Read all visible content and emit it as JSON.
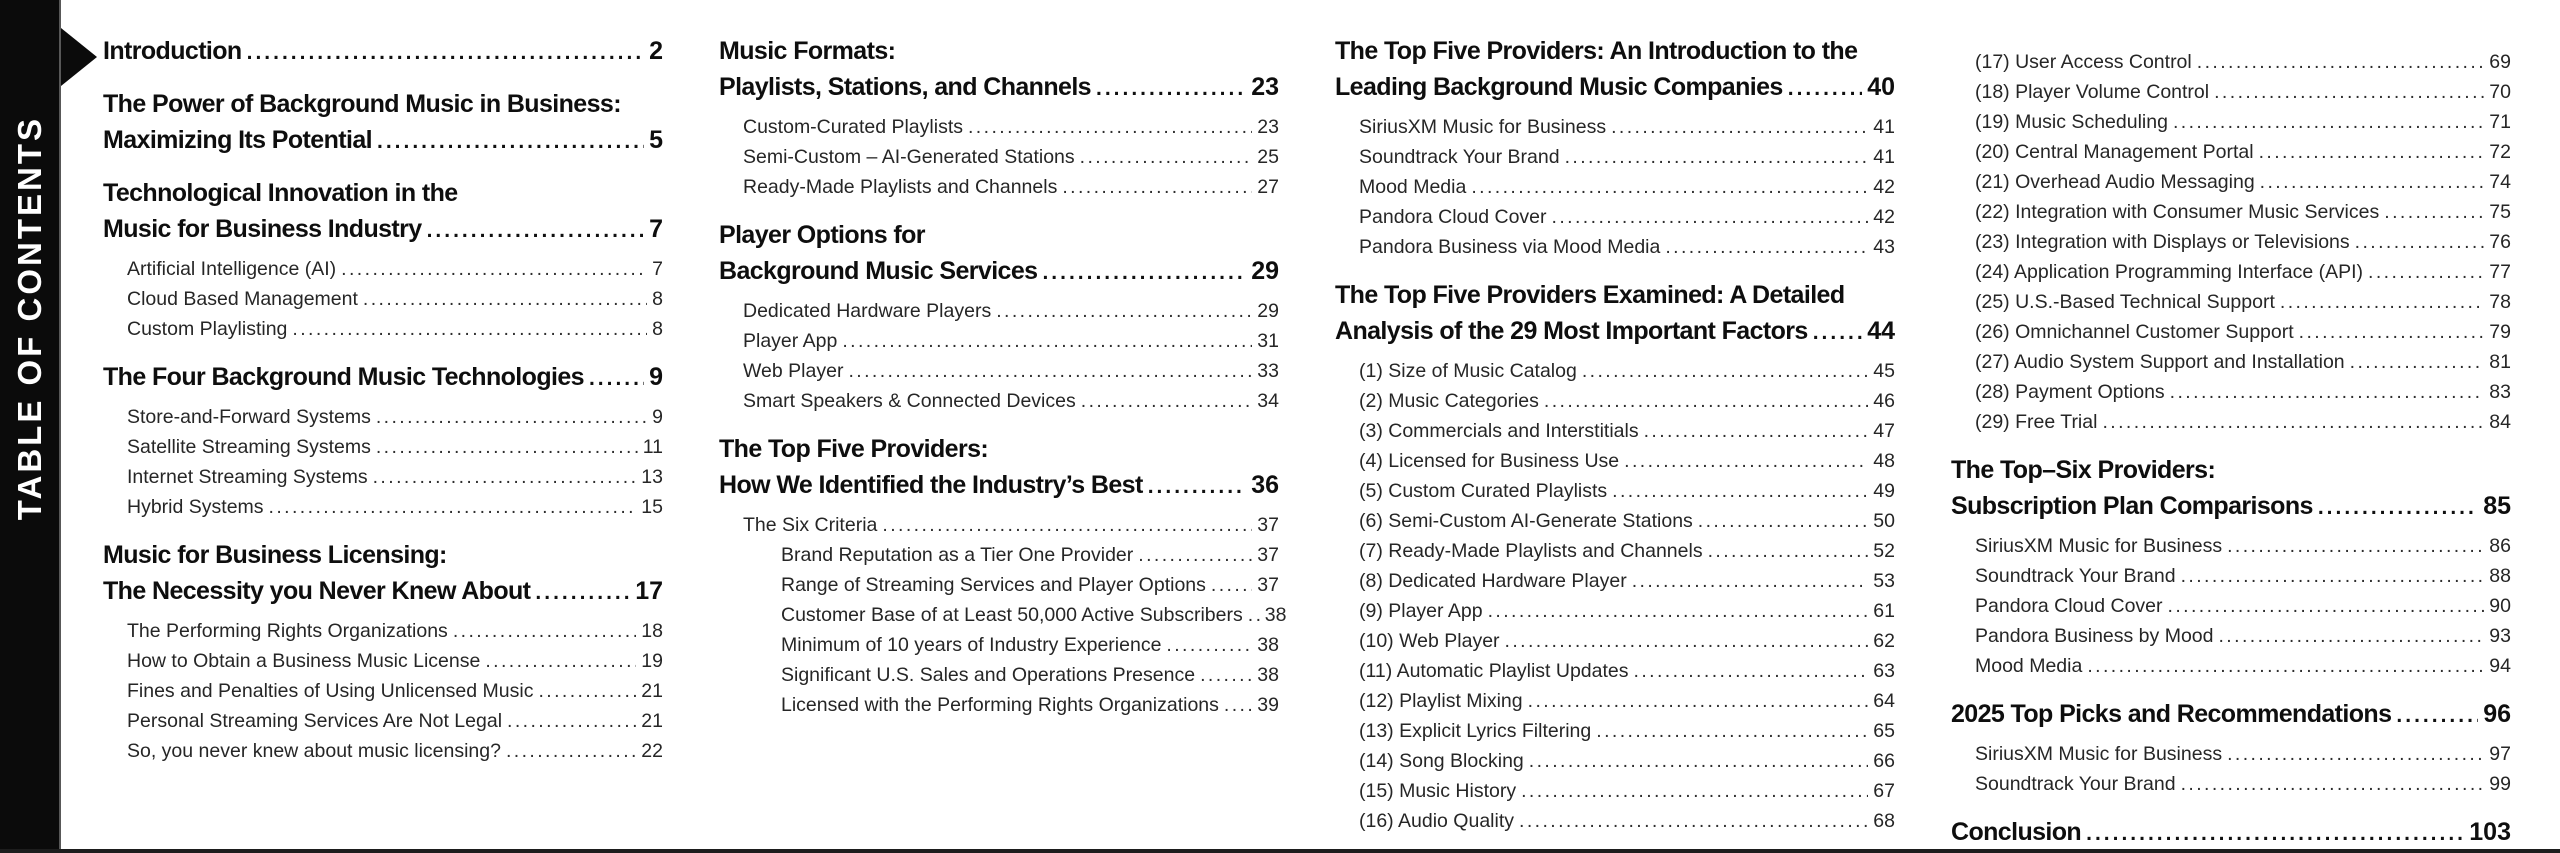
{
  "sidebar": {
    "label": "TABLE OF CONTENTS",
    "arrow_icon": "right-arrow"
  },
  "columns": [
    {
      "sections": [
        {
          "heading_lines": [
            "Introduction"
          ],
          "page": "2",
          "items": []
        },
        {
          "heading_lines": [
            "The Power of Background Music in Business:",
            "Maximizing Its Potential"
          ],
          "page": "5",
          "items": []
        },
        {
          "heading_lines": [
            "Technological Innovation in the",
            "Music for Business Industry"
          ],
          "page": "7",
          "items": [
            {
              "text": "Artificial Intelligence (AI)",
              "page": "7",
              "level": 1
            },
            {
              "text": "Cloud Based Management",
              "page": "8",
              "level": 1
            },
            {
              "text": "Custom Playlisting",
              "page": "8",
              "level": 1
            }
          ]
        },
        {
          "heading_lines": [
            "The Four Background Music Technologies"
          ],
          "page": "9",
          "items": [
            {
              "text": "Store-and-Forward Systems",
              "page": "9",
              "level": 1
            },
            {
              "text": "Satellite Streaming Systems",
              "page": "11",
              "level": 1
            },
            {
              "text": "Internet Streaming Systems",
              "page": "13",
              "level": 1
            },
            {
              "text": "Hybrid Systems",
              "page": "15",
              "level": 1
            }
          ]
        },
        {
          "heading_lines": [
            "Music for Business Licensing:",
            "The Necessity you Never Knew About"
          ],
          "page": "17",
          "items": [
            {
              "text": "The Performing Rights Organizations",
              "page": "18",
              "level": 1
            },
            {
              "text": "How to Obtain a Business Music License",
              "page": "19",
              "level": 1
            },
            {
              "text": "Fines and Penalties of Using Unlicensed Music",
              "page": "21",
              "level": 1
            },
            {
              "text": "Personal Streaming Services Are Not Legal",
              "page": "21",
              "level": 1
            },
            {
              "text": "So, you never knew about music licensing?",
              "page": "22",
              "level": 1
            }
          ]
        }
      ]
    },
    {
      "sections": [
        {
          "heading_lines": [
            "Music Formats:",
            "Playlists, Stations, and Channels"
          ],
          "page": "23",
          "items": [
            {
              "text": "Custom-Curated Playlists",
              "page": "23",
              "level": 1
            },
            {
              "text": "Semi-Custom – AI-Generated Stations",
              "page": "25",
              "level": 1
            },
            {
              "text": "Ready-Made Playlists and Channels",
              "page": "27",
              "level": 1
            }
          ]
        },
        {
          "heading_lines": [
            "Player Options for",
            "Background Music Services"
          ],
          "page": "29",
          "items": [
            {
              "text": "Dedicated Hardware Players",
              "page": "29",
              "level": 1
            },
            {
              "text": "Player App",
              "page": "31",
              "level": 1
            },
            {
              "text": "Web Player",
              "page": "33",
              "level": 1
            },
            {
              "text": "Smart Speakers & Connected Devices",
              "page": "34",
              "level": 1
            }
          ]
        },
        {
          "heading_lines": [
            "The Top Five Providers:",
            "How We Identified the Industry’s Best"
          ],
          "page": "36",
          "items": [
            {
              "text": "The Six Criteria",
              "page": "37",
              "level": 1
            },
            {
              "text": "Brand Reputation as a Tier One Provider",
              "page": "37",
              "level": 2
            },
            {
              "text": "Range of Streaming Services and Player Options",
              "page": "37",
              "level": 2
            },
            {
              "text": "Customer Base of at Least 50,000 Active Subscribers",
              "page": "38",
              "level": 2
            },
            {
              "text": "Minimum of 10 years of Industry Experience",
              "page": "38",
              "level": 2
            },
            {
              "text": "Significant U.S. Sales and Operations Presence",
              "page": "38",
              "level": 2
            },
            {
              "text": "Licensed with the Performing Rights Organizations",
              "page": "39",
              "level": 2
            }
          ]
        }
      ]
    },
    {
      "sections": [
        {
          "heading_lines": [
            "The Top Five Providers: An Introduction to the",
            "Leading Background Music Companies"
          ],
          "page": "40",
          "items": [
            {
              "text": "SiriusXM Music for Business",
              "page": "41",
              "level": 1
            },
            {
              "text": "Soundtrack Your Brand",
              "page": "41",
              "level": 1
            },
            {
              "text": "Mood Media",
              "page": "42",
              "level": 1
            },
            {
              "text": "Pandora Cloud Cover",
              "page": "42",
              "level": 1
            },
            {
              "text": "Pandora Business via Mood Media",
              "page": "43",
              "level": 1
            }
          ]
        },
        {
          "heading_lines": [
            "The Top Five Providers Examined: A Detailed",
            "Analysis of the 29 Most Important Factors"
          ],
          "page": "44",
          "items": [
            {
              "text": "(1) Size of Music Catalog",
              "page": "45",
              "level": 1
            },
            {
              "text": "(2) Music Categories",
              "page": "46",
              "level": 1
            },
            {
              "text": "(3) Commercials and Interstitials",
              "page": "47",
              "level": 1
            },
            {
              "text": "(4) Licensed for Business Use",
              "page": "48",
              "level": 1
            },
            {
              "text": "(5) Custom Curated Playlists",
              "page": "49",
              "level": 1
            },
            {
              "text": "(6) Semi-Custom AI-Generate Stations",
              "page": "50",
              "level": 1
            },
            {
              "text": "(7) Ready-Made Playlists and Channels",
              "page": "52",
              "level": 1
            },
            {
              "text": "(8) Dedicated Hardware Player",
              "page": "53",
              "level": 1
            },
            {
              "text": "(9) Player App",
              "page": "61",
              "level": 1
            },
            {
              "text": "(10) Web Player",
              "page": "62",
              "level": 1
            },
            {
              "text": "(11) Automatic Playlist Updates",
              "page": "63",
              "level": 1
            },
            {
              "text": "(12) Playlist Mixing",
              "page": "64",
              "level": 1
            },
            {
              "text": "(13) Explicit Lyrics Filtering",
              "page": "65",
              "level": 1
            },
            {
              "text": "(14) Song Blocking",
              "page": "66",
              "level": 1
            },
            {
              "text": "(15) Music History",
              "page": "67",
              "level": 1
            },
            {
              "text": "(16) Audio Quality",
              "page": "68",
              "level": 1
            }
          ]
        }
      ]
    },
    {
      "sections": [
        {
          "heading_lines": [],
          "page": "",
          "items": [
            {
              "text": "(17) User Access Control",
              "page": "69",
              "level": 1
            },
            {
              "text": "(18) Player Volume Control",
              "page": "70",
              "level": 1
            },
            {
              "text": "(19) Music Scheduling",
              "page": "71",
              "level": 1
            },
            {
              "text": "(20) Central Management Portal",
              "page": "72",
              "level": 1
            },
            {
              "text": "(21) Overhead Audio Messaging",
              "page": "74",
              "level": 1
            },
            {
              "text": "(22) Integration with Consumer Music Services",
              "page": "75",
              "level": 1
            },
            {
              "text": "(23) Integration with Displays or Televisions",
              "page": "76",
              "level": 1
            },
            {
              "text": "(24) Application Programming Interface (API)",
              "page": "77",
              "level": 1
            },
            {
              "text": "(25) U.S.-Based Technical Support",
              "page": "78",
              "level": 1
            },
            {
              "text": "(26) Omnichannel Customer Support",
              "page": "79",
              "level": 1
            },
            {
              "text": "(27) Audio System Support and Installation",
              "page": "81",
              "level": 1
            },
            {
              "text": "(28) Payment Options",
              "page": "83",
              "level": 1
            },
            {
              "text": "(29) Free Trial",
              "page": "84",
              "level": 1
            }
          ]
        },
        {
          "heading_lines": [
            "The Top–Six Providers:",
            "Subscription Plan Comparisons"
          ],
          "page": "85",
          "items": [
            {
              "text": "SiriusXM Music for Business",
              "page": "86",
              "level": 1
            },
            {
              "text": "Soundtrack Your Brand",
              "page": "88",
              "level": 1
            },
            {
              "text": "Pandora Cloud Cover",
              "page": "90",
              "level": 1
            },
            {
              "text": "Pandora Business by Mood",
              "page": "93",
              "level": 1
            },
            {
              "text": "Mood Media",
              "page": "94",
              "level": 1
            }
          ]
        },
        {
          "heading_lines": [
            "2025 Top Picks and Recommendations"
          ],
          "page": "96",
          "items": [
            {
              "text": "SiriusXM Music for Business",
              "page": "97",
              "level": 1
            },
            {
              "text": "Soundtrack Your Brand",
              "page": "99",
              "level": 1
            }
          ]
        },
        {
          "heading_lines": [
            "Conclusion"
          ],
          "page": "103",
          "items": []
        }
      ]
    }
  ]
}
